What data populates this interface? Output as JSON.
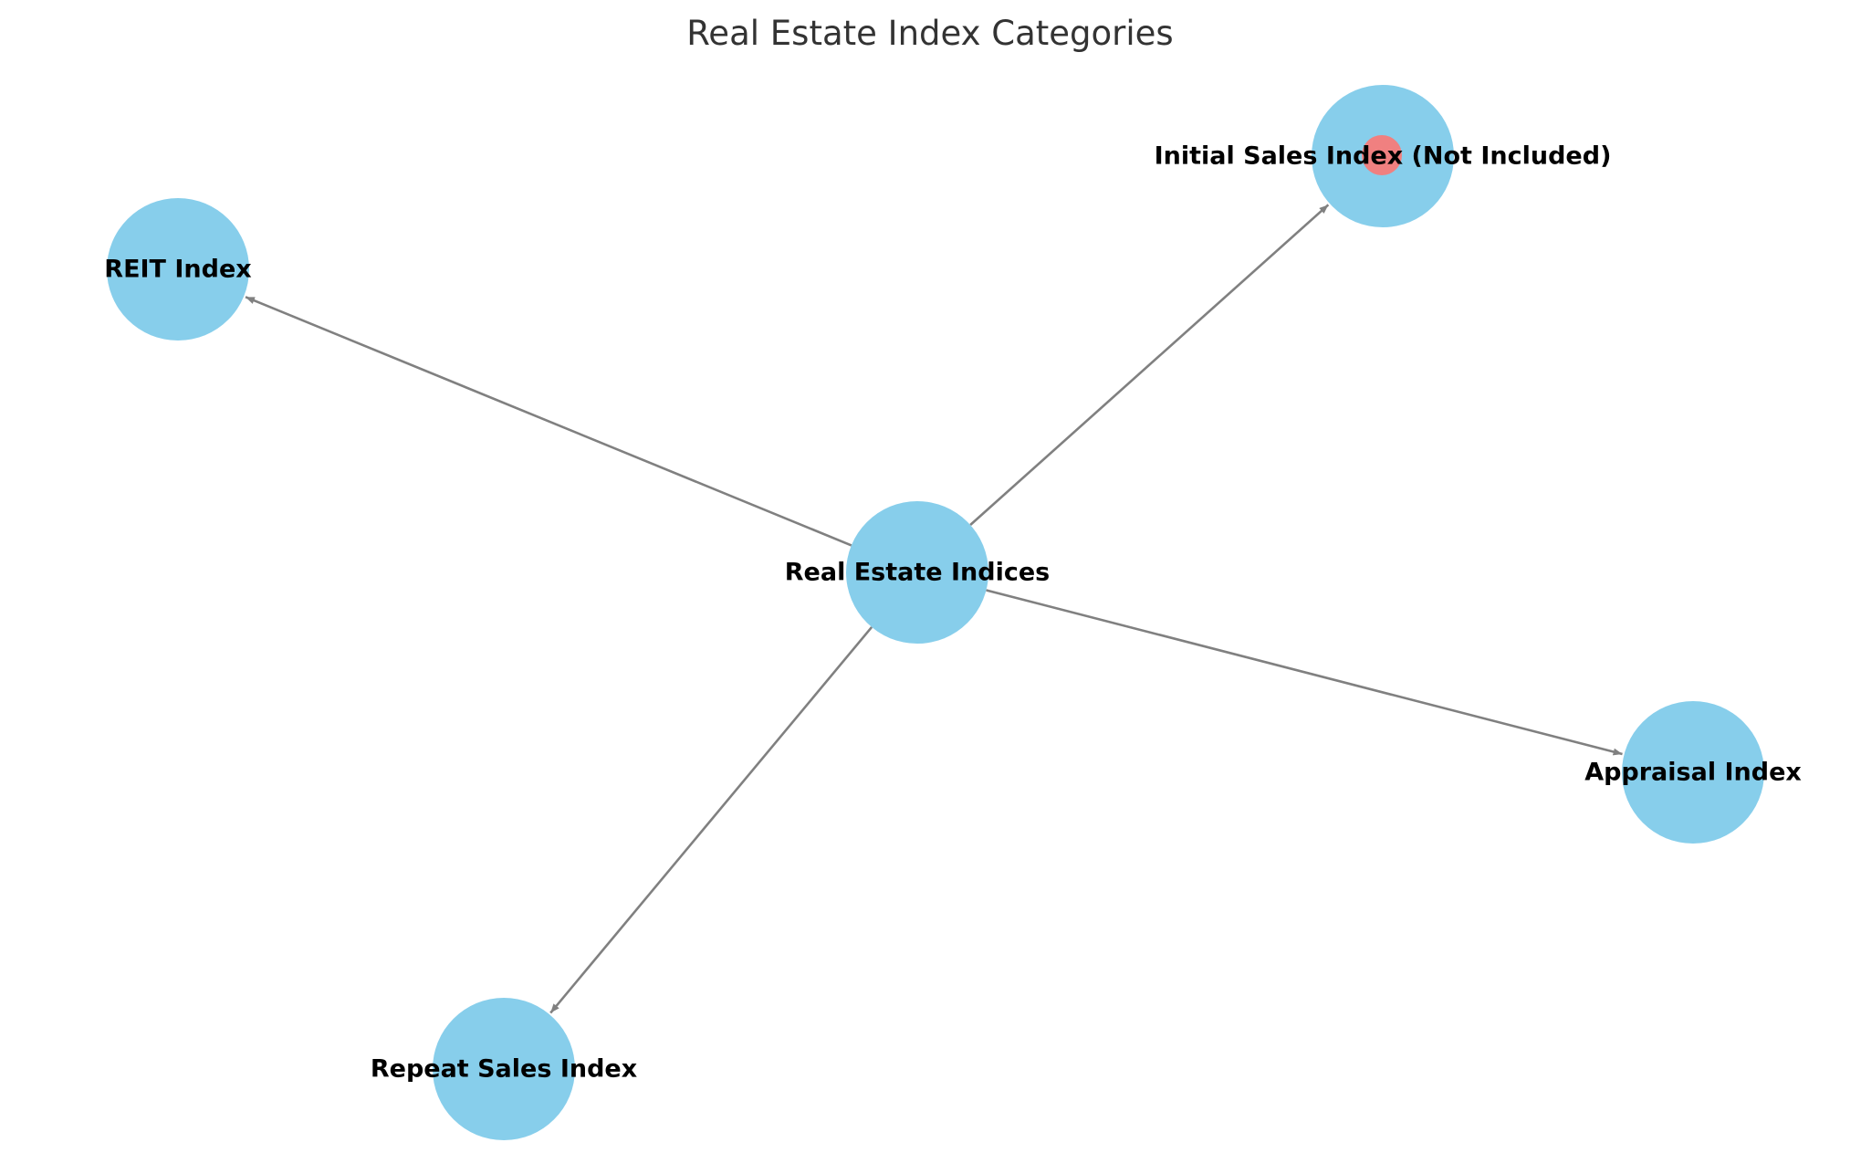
{
  "title": "Real Estate Index Categories",
  "colors": {
    "node": "#87CEEB",
    "highlight": "#F08080",
    "edge": "#808080",
    "label": "#000000",
    "title": "#333333"
  },
  "nodes": [
    {
      "id": "center",
      "label": "Real Estate Indices"
    },
    {
      "id": "initial",
      "label": "Initial Sales Index (Not Included)",
      "highlight": true
    },
    {
      "id": "reit",
      "label": "REIT Index"
    },
    {
      "id": "appraisal",
      "label": "Appraisal Index"
    },
    {
      "id": "repeat",
      "label": "Repeat Sales Index"
    }
  ],
  "edges": [
    {
      "from": "center",
      "to": "initial"
    },
    {
      "from": "center",
      "to": "reit"
    },
    {
      "from": "center",
      "to": "appraisal"
    },
    {
      "from": "center",
      "to": "repeat"
    }
  ]
}
